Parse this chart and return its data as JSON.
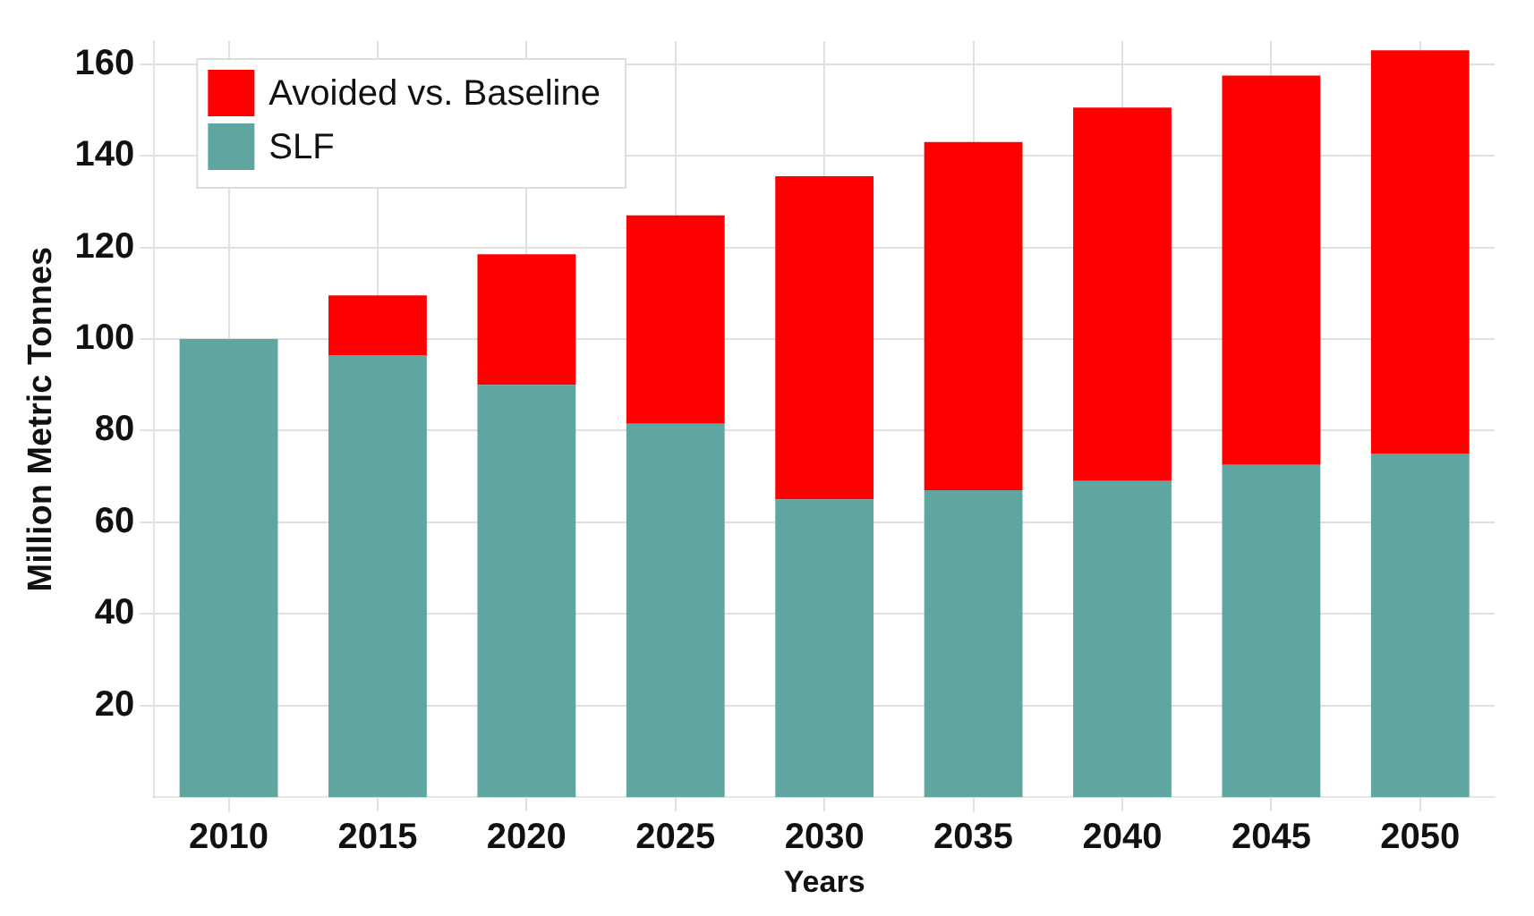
{
  "chart_data": {
    "type": "bar",
    "stacked": true,
    "xlabel": "Years",
    "ylabel": "Million Metric Tonnes",
    "categories": [
      "2010",
      "2015",
      "2020",
      "2025",
      "2030",
      "2035",
      "2040",
      "2045",
      "2050"
    ],
    "series": [
      {
        "name": "SLF",
        "color": "#5fa5a0",
        "values": [
          100,
          96.5,
          90,
          81.5,
          65,
          67,
          69,
          72.5,
          75
        ]
      },
      {
        "name": "Avoided vs. Baseline",
        "color": "#ff0000",
        "values": [
          0,
          13,
          28.5,
          45.5,
          70.5,
          76,
          81.5,
          85,
          88
        ]
      }
    ],
    "ylim": [
      0,
      165
    ],
    "yticks": [
      20,
      40,
      60,
      80,
      100,
      120,
      140,
      160
    ],
    "grid": true,
    "legend": "top left"
  }
}
